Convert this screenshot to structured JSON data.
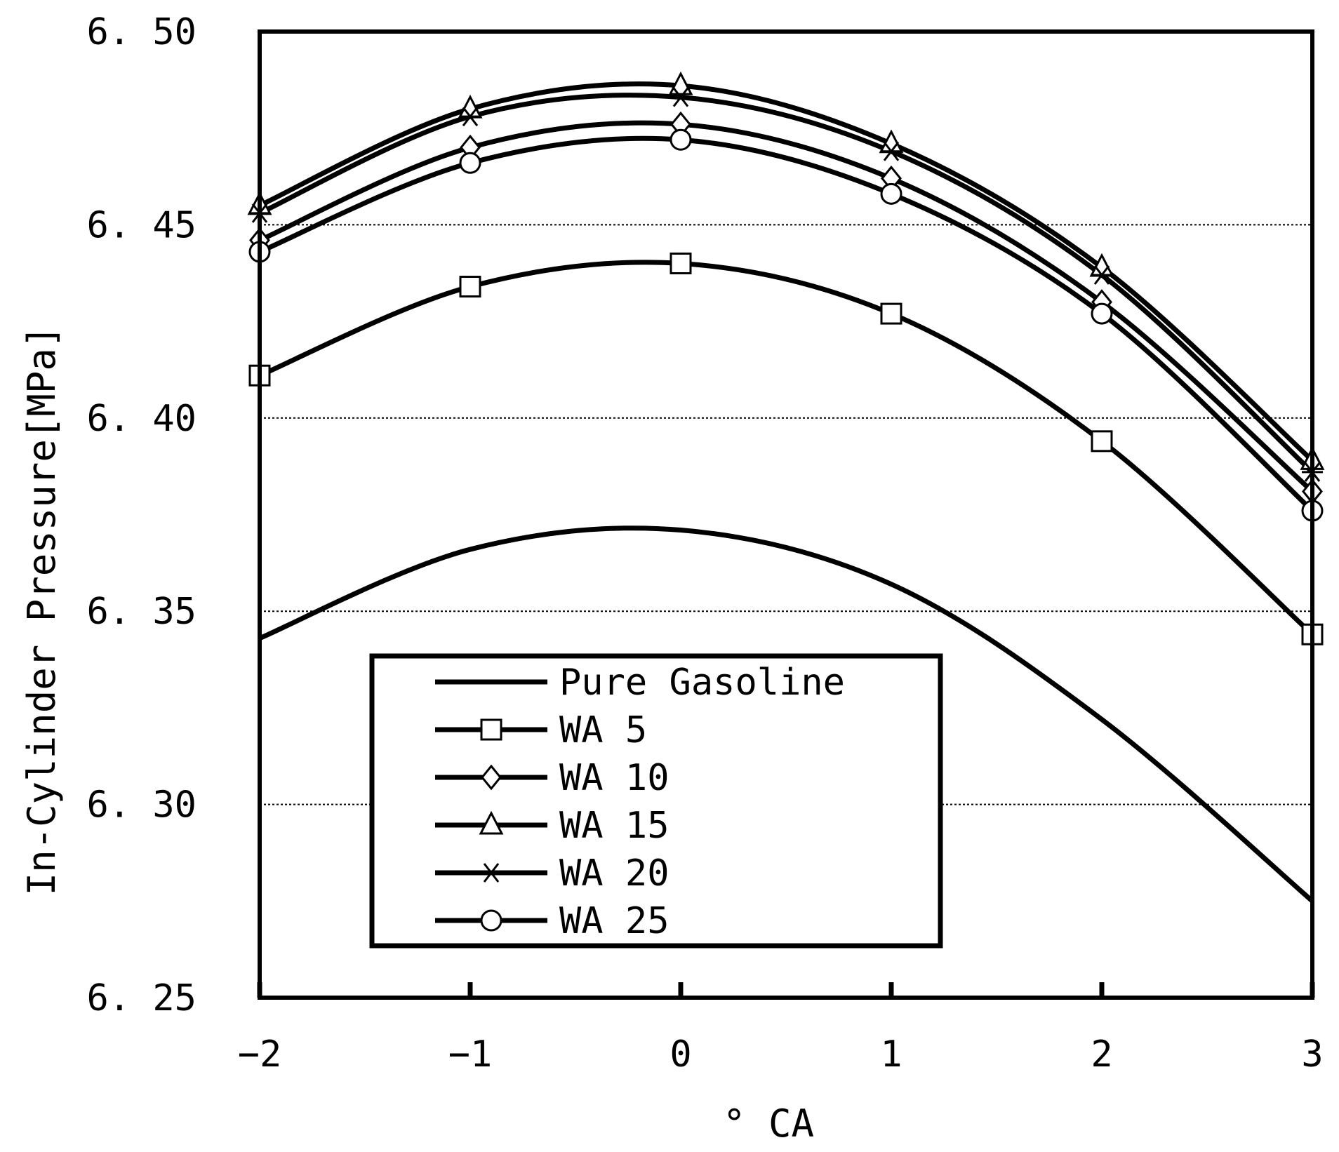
{
  "chart_data": {
    "type": "line",
    "title": "",
    "xlabel": "° CA",
    "ylabel": "In-Cylinder Pressure[MPa]",
    "xlim": [
      -2,
      3
    ],
    "ylim": [
      6.25,
      6.5
    ],
    "x_ticks": [
      -2,
      -1,
      0,
      1,
      2,
      3
    ],
    "x_tick_labels": [
      "−2",
      "−1",
      "0",
      "1",
      "2",
      "3"
    ],
    "y_ticks": [
      6.25,
      6.3,
      6.35,
      6.4,
      6.45,
      6.5
    ],
    "y_tick_labels": [
      "6. 25",
      "6. 30",
      "6. 35",
      "6. 40",
      "6. 45",
      "6. 50"
    ],
    "grid": "horizontal dotted",
    "legend_position": "bottom-center",
    "x": [
      -2,
      -1,
      0,
      1,
      2,
      3
    ],
    "series": [
      {
        "name": "Pure Gasoline",
        "marker": "none",
        "values": [
          6.343,
          6.366,
          6.371,
          6.357,
          6.322,
          6.275
        ]
      },
      {
        "name": "WA 5",
        "marker": "square",
        "values": [
          6.411,
          6.434,
          6.44,
          6.427,
          6.394,
          6.344
        ]
      },
      {
        "name": "WA 10",
        "marker": "diamond",
        "values": [
          6.446,
          6.47,
          6.476,
          6.462,
          6.43,
          6.381
        ]
      },
      {
        "name": "WA 15",
        "marker": "triangle",
        "values": [
          6.455,
          6.48,
          6.486,
          6.471,
          6.439,
          6.389
        ]
      },
      {
        "name": "WA 20",
        "marker": "asterisk",
        "values": [
          6.453,
          6.478,
          6.483,
          6.469,
          6.437,
          6.386
        ]
      },
      {
        "name": "WA 25",
        "marker": "circle",
        "values": [
          6.443,
          6.466,
          6.472,
          6.458,
          6.427,
          6.376
        ]
      }
    ]
  }
}
